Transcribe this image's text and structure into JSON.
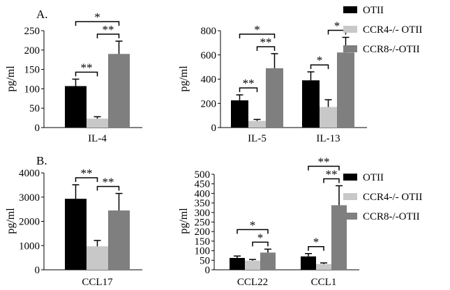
{
  "panel_labels": {
    "a": "A.",
    "b": "B."
  },
  "legend": {
    "items": [
      {
        "label": "OTII",
        "color": "#000000"
      },
      {
        "label": "CCR4-/- OTII",
        "color": "#c8c8c8"
      },
      {
        "label": "CCR8-/-OTII",
        "color": "#7f7f7f"
      }
    ]
  },
  "colors": {
    "OTII": "#000000",
    "CCR4": "#c8c8c8",
    "CCR8": "#7f7f7f",
    "error": "#000000"
  },
  "chart_data": [
    {
      "id": "il4",
      "type": "bar",
      "ylabel": "pg/ml",
      "ylim": [
        0,
        250
      ],
      "yticks": [
        0,
        50,
        100,
        150,
        200,
        250
      ],
      "categories": [
        "IL-4"
      ],
      "series": [
        {
          "name": "OTII",
          "values": [
            107
          ],
          "errors": [
            18
          ]
        },
        {
          "name": "CCR4-/- OTII",
          "values": [
            23
          ],
          "errors": [
            5
          ]
        },
        {
          "name": "CCR8-/-OTII",
          "values": [
            190
          ],
          "errors": [
            33
          ]
        }
      ],
      "significance": [
        {
          "group": 0,
          "from": 0,
          "to": 1,
          "label": "**"
        },
        {
          "group": 0,
          "from": 1,
          "to": 2,
          "label": "**"
        },
        {
          "group": 0,
          "from": 0,
          "to": 2,
          "label": "*"
        }
      ]
    },
    {
      "id": "il5_il13",
      "type": "bar",
      "ylabel": "pg/ml",
      "ylim": [
        0,
        800
      ],
      "yticks": [
        0,
        200,
        400,
        600,
        800
      ],
      "categories": [
        "IL-5",
        "IL-13"
      ],
      "series": [
        {
          "name": "OTII",
          "values": [
            225,
            390
          ],
          "errors": [
            45,
            70
          ]
        },
        {
          "name": "CCR4-/- OTII",
          "values": [
            55,
            170
          ],
          "errors": [
            12,
            60
          ]
        },
        {
          "name": "CCR8-/-OTII",
          "values": [
            490,
            620
          ],
          "errors": [
            120,
            125
          ]
        }
      ],
      "significance": [
        {
          "group": 0,
          "from": 0,
          "to": 1,
          "label": "**"
        },
        {
          "group": 0,
          "from": 1,
          "to": 2,
          "label": "**"
        },
        {
          "group": 0,
          "from": 0,
          "to": 2,
          "label": "*"
        },
        {
          "group": 1,
          "from": 0,
          "to": 1,
          "label": "*"
        },
        {
          "group": 1,
          "from": 1,
          "to": 2,
          "label": "*"
        }
      ]
    },
    {
      "id": "ccl17",
      "type": "bar",
      "ylabel": "pg/ml",
      "ylim": [
        0,
        4000
      ],
      "yticks": [
        0,
        1000,
        2000,
        3000,
        4000
      ],
      "categories": [
        "CCL17"
      ],
      "series": [
        {
          "name": "OTII",
          "values": [
            2930
          ],
          "errors": [
            580
          ]
        },
        {
          "name": "CCR4-/- OTII",
          "values": [
            970
          ],
          "errors": [
            240
          ]
        },
        {
          "name": "CCR8-/-OTII",
          "values": [
            2450
          ],
          "errors": [
            700
          ]
        }
      ],
      "significance": [
        {
          "group": 0,
          "from": 0,
          "to": 1,
          "label": "**"
        },
        {
          "group": 0,
          "from": 1,
          "to": 2,
          "label": "**"
        }
      ]
    },
    {
      "id": "ccl22_ccl1",
      "type": "bar",
      "ylabel": "pg/ml",
      "ylim": [
        0,
        500
      ],
      "yticks": [
        0,
        50,
        100,
        150,
        200,
        250,
        300,
        350,
        400,
        450,
        500
      ],
      "categories": [
        "CCL22",
        "CCL1"
      ],
      "series": [
        {
          "name": "OTII",
          "values": [
            62,
            70
          ],
          "errors": [
            10,
            15
          ]
        },
        {
          "name": "CCR4-/- OTII",
          "values": [
            48,
            30
          ],
          "errors": [
            6,
            6
          ]
        },
        {
          "name": "CCR8-/-OTII",
          "values": [
            90,
            338
          ],
          "errors": [
            18,
            102
          ]
        }
      ],
      "significance": [
        {
          "group": 0,
          "from": 1,
          "to": 2,
          "label": "*"
        },
        {
          "group": 0,
          "from": 0,
          "to": 2,
          "label": "*"
        },
        {
          "group": 1,
          "from": 0,
          "to": 1,
          "label": "*"
        },
        {
          "group": 1,
          "from": 1,
          "to": 2,
          "label": "**"
        },
        {
          "group": 1,
          "from": 0,
          "to": 2,
          "label": "**"
        }
      ]
    }
  ]
}
